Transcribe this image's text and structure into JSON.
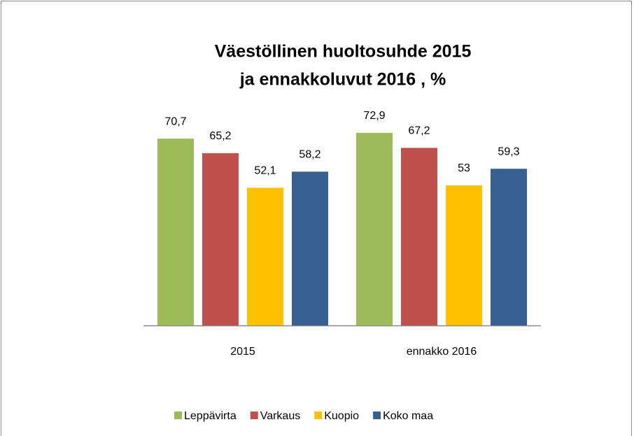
{
  "chart_data": {
    "type": "bar",
    "title": [
      "Väestöllinen huoltosuhde 2015",
      "ja ennakkoluvut 2016 , %"
    ],
    "categories": [
      "2015",
      "ennakko 2016"
    ],
    "series": [
      {
        "name": "Leppävirta",
        "color": "#9bbb59",
        "values": [
          70.7,
          72.9
        ],
        "value_labels": [
          "70,7",
          "72,9"
        ]
      },
      {
        "name": "Varkaus",
        "color": "#c0504d",
        "values": [
          65.2,
          67.2
        ],
        "value_labels": [
          "65,2",
          "67,2"
        ]
      },
      {
        "name": "Kuopio",
        "color": "#ffc000",
        "values": [
          52.1,
          53
        ],
        "value_labels": [
          "52,1",
          "53"
        ]
      },
      {
        "name": "Koko maa",
        "color": "#376092",
        "values": [
          58.2,
          59.3
        ],
        "value_labels": [
          "58,2",
          "59,3"
        ]
      }
    ],
    "ylim": [
      0,
      80
    ],
    "legend": "bottom"
  }
}
